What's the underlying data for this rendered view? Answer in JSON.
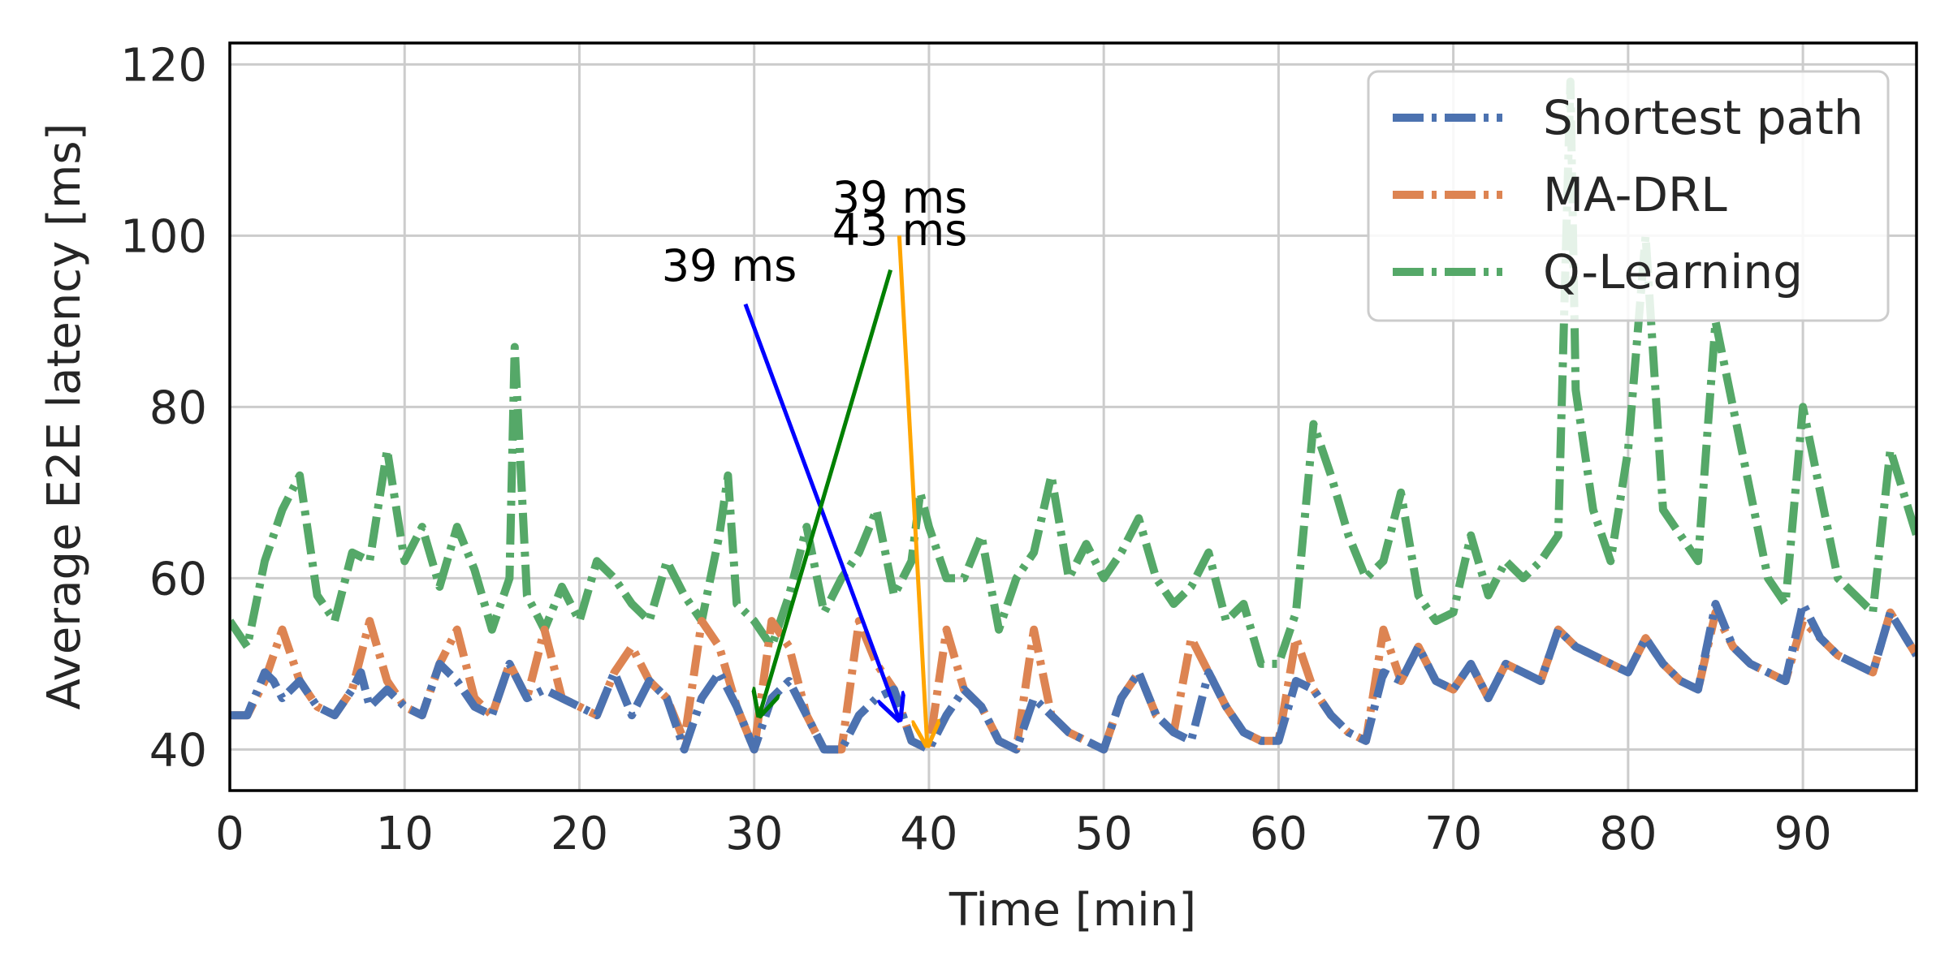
{
  "chart_data": {
    "type": "line",
    "title": "",
    "xlabel": "Time [min]",
    "ylabel": "Average E2E latency [ms]",
    "xlim": [
      0,
      96.5
    ],
    "ylim": [
      35.2,
      122.5
    ],
    "xticks": [
      0,
      10,
      20,
      30,
      40,
      50,
      60,
      70,
      80,
      90
    ],
    "yticks": [
      40,
      60,
      80,
      100,
      120
    ],
    "grid": true,
    "legend_position": "top-right",
    "line_style": "dash-dot",
    "series": [
      {
        "name": "Shortest path",
        "color": "#4c72b0",
        "points": [
          [
            0,
            44
          ],
          [
            1,
            44
          ],
          [
            2,
            49
          ],
          [
            2.5,
            48
          ],
          [
            3,
            46
          ],
          [
            4,
            48
          ],
          [
            5,
            45
          ],
          [
            6,
            44
          ],
          [
            7,
            47
          ],
          [
            7.5,
            49
          ],
          [
            8,
            45
          ],
          [
            9,
            47
          ],
          [
            10,
            45
          ],
          [
            11,
            44
          ],
          [
            12,
            50
          ],
          [
            13,
            48
          ],
          [
            14,
            45
          ],
          [
            15,
            44
          ],
          [
            16,
            50
          ],
          [
            17,
            46
          ],
          [
            18,
            47
          ],
          [
            19,
            46
          ],
          [
            20,
            45
          ],
          [
            21,
            44
          ],
          [
            22,
            49
          ],
          [
            23,
            44
          ],
          [
            24,
            48
          ],
          [
            25,
            46
          ],
          [
            26,
            40
          ],
          [
            27,
            46
          ],
          [
            28,
            49
          ],
          [
            29,
            45
          ],
          [
            30,
            40
          ],
          [
            31,
            46
          ],
          [
            32,
            48
          ],
          [
            33,
            44
          ],
          [
            34,
            40
          ],
          [
            35,
            40
          ],
          [
            36,
            44
          ],
          [
            37,
            46
          ],
          [
            38,
            47
          ],
          [
            39,
            41
          ],
          [
            40,
            40
          ],
          [
            41,
            44
          ],
          [
            42,
            47
          ],
          [
            43,
            45
          ],
          [
            44,
            41
          ],
          [
            45,
            40
          ],
          [
            46,
            46
          ],
          [
            47,
            44
          ],
          [
            48,
            42
          ],
          [
            49,
            41
          ],
          [
            50,
            40
          ],
          [
            51,
            46
          ],
          [
            52,
            49
          ],
          [
            53,
            44
          ],
          [
            54,
            42
          ],
          [
            55,
            41
          ],
          [
            56,
            49
          ],
          [
            57,
            45
          ],
          [
            58,
            42
          ],
          [
            59,
            41
          ],
          [
            60,
            41
          ],
          [
            61,
            48
          ],
          [
            62,
            47
          ],
          [
            63,
            44
          ],
          [
            64,
            42
          ],
          [
            65,
            41
          ],
          [
            66,
            49
          ],
          [
            67,
            48
          ],
          [
            68,
            52
          ],
          [
            69,
            48
          ],
          [
            70,
            47
          ],
          [
            71,
            50
          ],
          [
            72,
            46
          ],
          [
            73,
            50
          ],
          [
            74,
            49
          ],
          [
            75,
            48
          ],
          [
            76,
            54
          ],
          [
            77,
            52
          ],
          [
            78,
            51
          ],
          [
            79,
            50
          ],
          [
            80,
            49
          ],
          [
            81,
            53
          ],
          [
            82,
            50
          ],
          [
            83,
            48
          ],
          [
            84,
            47
          ],
          [
            85,
            57
          ],
          [
            86,
            52
          ],
          [
            87,
            50
          ],
          [
            88,
            49
          ],
          [
            89,
            48
          ],
          [
            90,
            57
          ],
          [
            91,
            53
          ],
          [
            92,
            51
          ],
          [
            93,
            50
          ],
          [
            94,
            49
          ],
          [
            95,
            56
          ],
          [
            96.5,
            51
          ]
        ]
      },
      {
        "name": "MA-DRL",
        "color": "#dd8452",
        "points": [
          [
            0,
            44
          ],
          [
            1,
            44
          ],
          [
            2,
            48
          ],
          [
            3,
            54
          ],
          [
            4,
            48
          ],
          [
            5,
            45
          ],
          [
            6,
            44
          ],
          [
            7,
            47
          ],
          [
            8,
            55
          ],
          [
            9,
            48
          ],
          [
            10,
            45
          ],
          [
            11,
            44
          ],
          [
            12,
            50
          ],
          [
            13,
            54
          ],
          [
            14,
            46
          ],
          [
            15,
            44
          ],
          [
            16,
            50
          ],
          [
            17,
            46
          ],
          [
            18,
            54
          ],
          [
            19,
            46
          ],
          [
            20,
            45
          ],
          [
            21,
            44
          ],
          [
            22,
            49
          ],
          [
            23,
            52
          ],
          [
            24,
            48
          ],
          [
            25,
            46
          ],
          [
            26,
            41
          ],
          [
            27,
            55
          ],
          [
            28,
            52
          ],
          [
            29,
            45
          ],
          [
            30,
            40
          ],
          [
            31,
            55
          ],
          [
            32,
            52
          ],
          [
            33,
            44
          ],
          [
            34,
            40
          ],
          [
            35,
            40
          ],
          [
            36,
            55
          ],
          [
            37,
            50
          ],
          [
            38,
            47
          ],
          [
            39,
            41
          ],
          [
            40,
            40
          ],
          [
            41,
            54
          ],
          [
            42,
            47
          ],
          [
            43,
            45
          ],
          [
            44,
            41
          ],
          [
            45,
            40
          ],
          [
            46,
            54
          ],
          [
            47,
            44
          ],
          [
            48,
            42
          ],
          [
            49,
            41
          ],
          [
            50,
            40
          ],
          [
            51,
            46
          ],
          [
            52,
            49
          ],
          [
            53,
            44
          ],
          [
            54,
            42
          ],
          [
            55,
            53
          ],
          [
            56,
            49
          ],
          [
            57,
            45
          ],
          [
            58,
            42
          ],
          [
            59,
            41
          ],
          [
            60,
            41
          ],
          [
            61,
            53
          ],
          [
            62,
            47
          ],
          [
            63,
            44
          ],
          [
            64,
            42
          ],
          [
            65,
            41
          ],
          [
            66,
            54
          ],
          [
            67,
            48
          ],
          [
            68,
            52
          ],
          [
            69,
            48
          ],
          [
            70,
            47
          ],
          [
            71,
            50
          ],
          [
            72,
            46
          ],
          [
            73,
            50
          ],
          [
            74,
            49
          ],
          [
            75,
            48
          ],
          [
            76,
            54
          ],
          [
            77,
            52
          ],
          [
            78,
            51
          ],
          [
            79,
            50
          ],
          [
            80,
            49
          ],
          [
            81,
            53
          ],
          [
            82,
            50
          ],
          [
            83,
            48
          ],
          [
            84,
            47
          ],
          [
            85,
            56
          ],
          [
            86,
            52
          ],
          [
            87,
            50
          ],
          [
            88,
            49
          ],
          [
            89,
            48
          ],
          [
            90,
            55
          ],
          [
            91,
            53
          ],
          [
            92,
            51
          ],
          [
            93,
            50
          ],
          [
            94,
            49
          ],
          [
            95,
            56
          ],
          [
            96.5,
            51
          ]
        ]
      },
      {
        "name": "Q-Learning",
        "color": "#55a868",
        "points": [
          [
            0,
            55
          ],
          [
            1,
            52
          ],
          [
            2,
            62
          ],
          [
            3,
            68
          ],
          [
            3.5,
            70
          ],
          [
            4,
            72
          ],
          [
            5,
            58
          ],
          [
            6,
            55
          ],
          [
            7,
            63
          ],
          [
            8,
            62
          ],
          [
            9,
            75
          ],
          [
            10,
            62
          ],
          [
            11,
            66
          ],
          [
            12,
            59
          ],
          [
            13,
            66
          ],
          [
            14,
            61
          ],
          [
            15,
            54
          ],
          [
            16,
            60
          ],
          [
            16.3,
            87
          ],
          [
            17,
            58
          ],
          [
            18,
            54
          ],
          [
            19,
            59
          ],
          [
            20,
            55
          ],
          [
            21,
            62
          ],
          [
            22,
            60
          ],
          [
            23,
            57
          ],
          [
            24,
            55
          ],
          [
            25,
            62
          ],
          [
            26,
            58
          ],
          [
            27,
            55
          ],
          [
            28,
            65
          ],
          [
            28.5,
            72
          ],
          [
            29,
            57
          ],
          [
            30,
            55
          ],
          [
            31,
            52
          ],
          [
            32,
            58
          ],
          [
            33,
            66
          ],
          [
            34,
            56
          ],
          [
            35,
            60
          ],
          [
            36,
            63
          ],
          [
            37,
            68
          ],
          [
            38,
            58
          ],
          [
            39,
            62
          ],
          [
            39.5,
            70
          ],
          [
            40,
            66
          ],
          [
            41,
            60
          ],
          [
            42,
            60
          ],
          [
            43,
            65
          ],
          [
            44,
            54
          ],
          [
            45,
            60
          ],
          [
            46,
            63
          ],
          [
            47,
            72
          ],
          [
            48,
            60
          ],
          [
            49,
            64
          ],
          [
            50,
            60
          ],
          [
            51,
            63
          ],
          [
            52,
            67
          ],
          [
            53,
            60
          ],
          [
            54,
            57
          ],
          [
            55,
            59
          ],
          [
            56,
            63
          ],
          [
            57,
            55
          ],
          [
            58,
            57
          ],
          [
            59,
            50
          ],
          [
            60,
            50
          ],
          [
            61,
            56
          ],
          [
            62,
            78
          ],
          [
            63,
            72
          ],
          [
            64,
            65
          ],
          [
            65,
            60
          ],
          [
            66,
            62
          ],
          [
            67,
            70
          ],
          [
            68,
            58
          ],
          [
            69,
            55
          ],
          [
            70,
            56
          ],
          [
            71,
            65
          ],
          [
            72,
            58
          ],
          [
            73,
            62
          ],
          [
            74,
            60
          ],
          [
            75,
            62
          ],
          [
            76,
            65
          ],
          [
            76.7,
            118
          ],
          [
            77,
            82
          ],
          [
            78,
            68
          ],
          [
            79,
            62
          ],
          [
            80,
            75
          ],
          [
            81,
            100
          ],
          [
            82,
            68
          ],
          [
            83,
            65
          ],
          [
            84,
            62
          ],
          [
            85,
            90
          ],
          [
            86,
            80
          ],
          [
            87,
            70
          ],
          [
            88,
            60
          ],
          [
            89,
            57
          ],
          [
            90,
            80
          ],
          [
            91,
            70
          ],
          [
            92,
            60
          ],
          [
            93,
            58
          ],
          [
            94,
            56
          ],
          [
            95,
            75
          ],
          [
            96.5,
            65
          ]
        ]
      }
    ],
    "annotations": [
      {
        "text": "39 ms",
        "color": "#0000ff",
        "from": [
          29.5,
          92
        ],
        "to": [
          38.3,
          43.5
        ]
      },
      {
        "text": "43 ms",
        "color": "#008000",
        "from": [
          37.8,
          96
        ],
        "to": [
          30.3,
          44
        ]
      },
      {
        "text": "39 ms",
        "color": "#ffa500",
        "from": [
          38.3,
          100
        ],
        "to": [
          39.9,
          40.5
        ]
      }
    ]
  }
}
